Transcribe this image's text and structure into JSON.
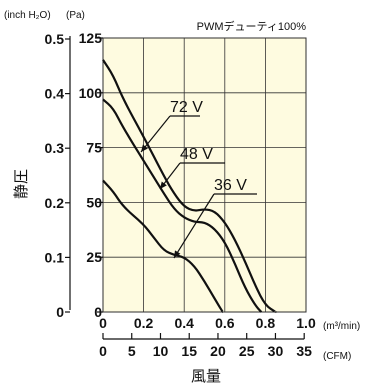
{
  "chart_data": {
    "type": "line",
    "title": "PWMデューティ100%",
    "ylabel": "静圧",
    "xlabel": "風量",
    "y_unit_left": "(inch H₂O)",
    "y_unit_right": "(Pa)",
    "x_unit_top": "(m³/min)",
    "x_unit_bottom": "(CFM)",
    "xlim": [
      0,
      1.0
    ],
    "ylim_pa": [
      0,
      125
    ],
    "x_ticks_m3min": [
      "0",
      "0.2",
      "0.4",
      "0.6",
      "0.8",
      "1.0"
    ],
    "x_ticks_cfm": [
      "0",
      "5",
      "10",
      "15",
      "20",
      "25",
      "30",
      "35"
    ],
    "y_ticks_pa": [
      "0",
      "25",
      "50",
      "75",
      "100",
      "125"
    ],
    "y_ticks_inch": [
      "0",
      "0.1",
      "0.2",
      "0.3",
      "0.4",
      "0.5"
    ],
    "grid": true,
    "plot_bg": "#fefbe0",
    "line_color": "#111111",
    "series": [
      {
        "name": "72 V",
        "x": [
          0,
          0.05,
          0.1,
          0.2,
          0.3,
          0.35,
          0.4,
          0.45,
          0.5,
          0.55,
          0.6,
          0.65,
          0.7,
          0.75,
          0.8,
          0.85
        ],
        "y": [
          115,
          108,
          97,
          80,
          62,
          54,
          48,
          46,
          47,
          46,
          41,
          33,
          23,
          12,
          3,
          0
        ]
      },
      {
        "name": "48 V",
        "x": [
          0,
          0.05,
          0.1,
          0.2,
          0.3,
          0.35,
          0.4,
          0.45,
          0.5,
          0.55,
          0.6,
          0.65,
          0.7,
          0.75,
          0.78
        ],
        "y": [
          97,
          93,
          84,
          69,
          54,
          47,
          43,
          41,
          41,
          38,
          32,
          22,
          11,
          3,
          0
        ]
      },
      {
        "name": "36 V",
        "x": [
          0,
          0.05,
          0.1,
          0.2,
          0.25,
          0.3,
          0.35,
          0.4,
          0.45,
          0.5,
          0.55,
          0.59
        ],
        "y": [
          60,
          55,
          48,
          40,
          34,
          28,
          26,
          25,
          21,
          14,
          6,
          0
        ]
      }
    ]
  }
}
